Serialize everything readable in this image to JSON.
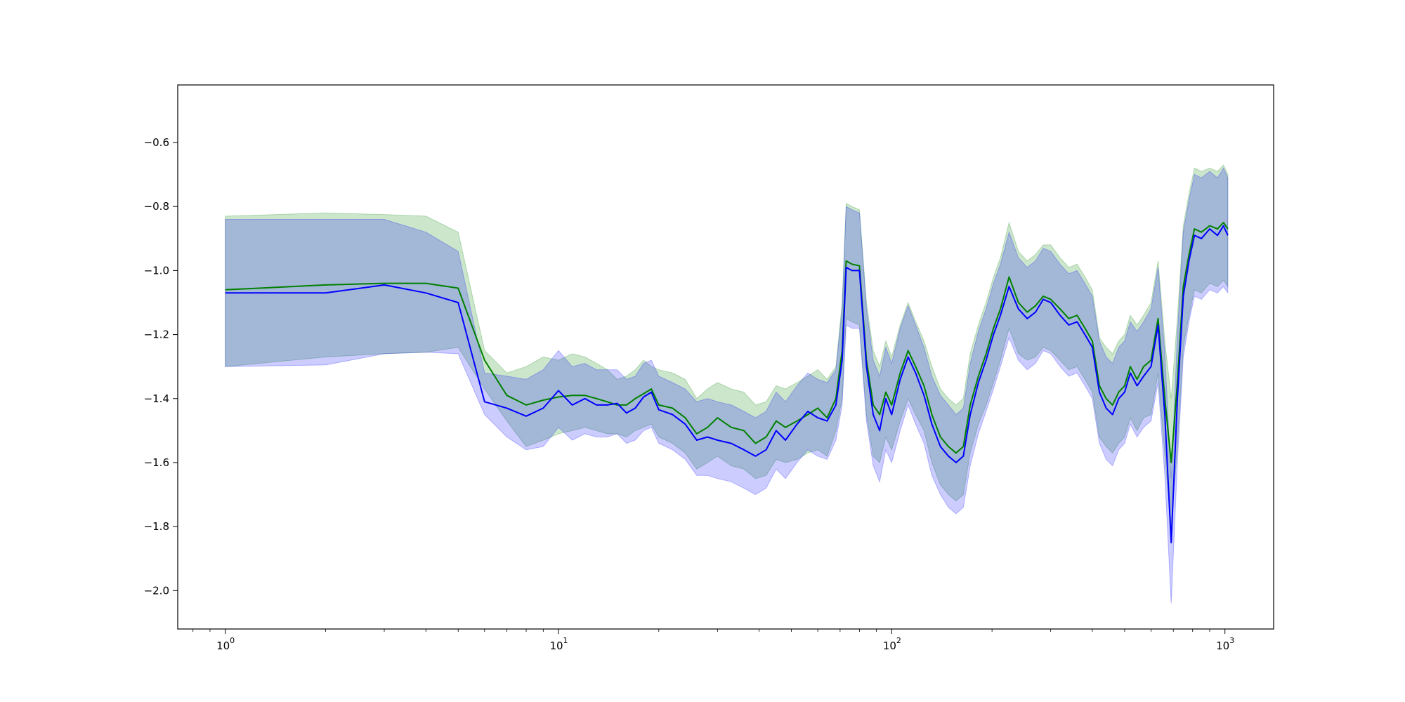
{
  "chart_data": {
    "type": "line",
    "title": "",
    "xlabel": "",
    "ylabel": "",
    "xscale": "log",
    "xlim": [
      0.72,
      1400
    ],
    "ylim": [
      -2.12,
      -0.42
    ],
    "grid": false,
    "legend": "none",
    "x_ticks": [
      1,
      10,
      100,
      1000
    ],
    "x_tick_labels": [
      "10",
      "10",
      "10",
      "10"
    ],
    "x_tick_exponents": [
      "0",
      "1",
      "2",
      "3"
    ],
    "y_ticks": [
      -0.6,
      -0.8,
      -1.0,
      -1.2,
      -1.4,
      -1.6,
      -1.8,
      -2.0
    ],
    "y_tick_labels": [
      "−0.6",
      "−0.8",
      "−1.0",
      "−1.2",
      "−1.4",
      "−1.6",
      "−1.8",
      "−2.0"
    ],
    "series": [
      {
        "color": "#008000",
        "band_color": "#008000",
        "points": [
          [
            1,
            -1.06,
            -0.83,
            -1.3
          ],
          [
            2,
            -1.045,
            -0.82,
            -1.27
          ],
          [
            3,
            -1.04,
            -0.825,
            -1.26
          ],
          [
            4,
            -1.04,
            -0.83,
            -1.255
          ],
          [
            5,
            -1.055,
            -0.88,
            -1.24
          ],
          [
            6,
            -1.28,
            -1.25,
            -1.37
          ],
          [
            7,
            -1.39,
            -1.32,
            -1.47
          ],
          [
            8,
            -1.42,
            -1.3,
            -1.55
          ],
          [
            9,
            -1.405,
            -1.27,
            -1.53
          ],
          [
            10,
            -1.395,
            -1.28,
            -1.51
          ],
          [
            11,
            -1.39,
            -1.26,
            -1.5
          ],
          [
            12,
            -1.39,
            -1.27,
            -1.49
          ],
          [
            13,
            -1.4,
            -1.29,
            -1.5
          ],
          [
            14,
            -1.41,
            -1.31,
            -1.51
          ],
          [
            15,
            -1.42,
            -1.34,
            -1.51
          ],
          [
            16,
            -1.42,
            -1.33,
            -1.52
          ],
          [
            17,
            -1.4,
            -1.31,
            -1.5
          ],
          [
            18,
            -1.385,
            -1.28,
            -1.49
          ],
          [
            19,
            -1.37,
            -1.3,
            -1.48
          ],
          [
            20,
            -1.42,
            -1.31,
            -1.52
          ],
          [
            22,
            -1.43,
            -1.32,
            -1.54
          ],
          [
            24,
            -1.46,
            -1.34,
            -1.57
          ],
          [
            26,
            -1.51,
            -1.4,
            -1.62
          ],
          [
            28,
            -1.49,
            -1.37,
            -1.6
          ],
          [
            30,
            -1.46,
            -1.35,
            -1.58
          ],
          [
            33,
            -1.49,
            -1.37,
            -1.61
          ],
          [
            36,
            -1.5,
            -1.38,
            -1.62
          ],
          [
            39,
            -1.54,
            -1.42,
            -1.65
          ],
          [
            42,
            -1.52,
            -1.41,
            -1.64
          ],
          [
            45,
            -1.47,
            -1.36,
            -1.59
          ],
          [
            48,
            -1.49,
            -1.37,
            -1.6
          ],
          [
            52,
            -1.47,
            -1.35,
            -1.59
          ],
          [
            56,
            -1.45,
            -1.33,
            -1.57
          ],
          [
            60,
            -1.43,
            -1.31,
            -1.56
          ],
          [
            64,
            -1.46,
            -1.34,
            -1.58
          ],
          [
            68,
            -1.4,
            -1.3,
            -1.5
          ],
          [
            71,
            -1.25,
            -1.1,
            -1.4
          ],
          [
            73,
            -0.97,
            -0.79,
            -1.15
          ],
          [
            76,
            -0.98,
            -0.8,
            -1.16
          ],
          [
            80,
            -0.985,
            -0.81,
            -1.17
          ],
          [
            84,
            -1.28,
            -1.1,
            -1.45
          ],
          [
            88,
            -1.42,
            -1.25,
            -1.58
          ],
          [
            92,
            -1.45,
            -1.3,
            -1.6
          ],
          [
            96,
            -1.38,
            -1.22,
            -1.52
          ],
          [
            100,
            -1.42,
            -1.27,
            -1.56
          ],
          [
            106,
            -1.32,
            -1.17,
            -1.47
          ],
          [
            112,
            -1.25,
            -1.1,
            -1.4
          ],
          [
            118,
            -1.3,
            -1.16,
            -1.45
          ],
          [
            125,
            -1.36,
            -1.22,
            -1.5
          ],
          [
            132,
            -1.45,
            -1.3,
            -1.6
          ],
          [
            140,
            -1.52,
            -1.37,
            -1.67
          ],
          [
            148,
            -1.55,
            -1.4,
            -1.7
          ],
          [
            156,
            -1.57,
            -1.42,
            -1.72
          ],
          [
            164,
            -1.55,
            -1.4,
            -1.7
          ],
          [
            172,
            -1.42,
            -1.26,
            -1.57
          ],
          [
            182,
            -1.33,
            -1.17,
            -1.48
          ],
          [
            192,
            -1.26,
            -1.1,
            -1.42
          ],
          [
            202,
            -1.18,
            -1.02,
            -1.35
          ],
          [
            212,
            -1.12,
            -0.96,
            -1.28
          ],
          [
            225,
            -1.02,
            -0.85,
            -1.18
          ],
          [
            240,
            -1.1,
            -0.94,
            -1.26
          ],
          [
            255,
            -1.13,
            -0.97,
            -1.28
          ],
          [
            270,
            -1.11,
            -0.95,
            -1.27
          ],
          [
            285,
            -1.08,
            -0.92,
            -1.24
          ],
          [
            300,
            -1.09,
            -0.92,
            -1.25
          ],
          [
            320,
            -1.12,
            -0.96,
            -1.28
          ],
          [
            340,
            -1.15,
            -0.99,
            -1.31
          ],
          [
            360,
            -1.14,
            -0.98,
            -1.3
          ],
          [
            380,
            -1.18,
            -1.02,
            -1.34
          ],
          [
            400,
            -1.22,
            -1.06,
            -1.38
          ],
          [
            420,
            -1.36,
            -1.21,
            -1.52
          ],
          [
            440,
            -1.4,
            -1.24,
            -1.55
          ],
          [
            460,
            -1.42,
            -1.26,
            -1.57
          ],
          [
            480,
            -1.38,
            -1.22,
            -1.54
          ],
          [
            500,
            -1.36,
            -1.2,
            -1.52
          ],
          [
            520,
            -1.3,
            -1.14,
            -1.46
          ],
          [
            545,
            -1.34,
            -1.17,
            -1.5
          ],
          [
            570,
            -1.3,
            -1.14,
            -1.46
          ],
          [
            600,
            -1.28,
            -1.1,
            -1.45
          ],
          [
            630,
            -1.15,
            -0.97,
            -1.32
          ],
          [
            660,
            -1.4,
            -1.22,
            -1.58
          ],
          [
            690,
            -1.6,
            -1.4,
            -1.8
          ],
          [
            720,
            -1.35,
            -1.15,
            -1.55
          ],
          [
            750,
            -1.05,
            -0.86,
            -1.24
          ],
          [
            780,
            -0.95,
            -0.76,
            -1.14
          ],
          [
            810,
            -0.87,
            -0.68,
            -1.06
          ],
          [
            850,
            -0.88,
            -0.69,
            -1.07
          ],
          [
            900,
            -0.86,
            -0.68,
            -1.04
          ],
          [
            950,
            -0.87,
            -0.69,
            -1.05
          ],
          [
            990,
            -0.85,
            -0.67,
            -1.03
          ],
          [
            1020,
            -0.87,
            -0.7,
            -1.05
          ]
        ]
      },
      {
        "color": "#0000ff",
        "band_color": "#0000ff",
        "points": [
          [
            1,
            -1.07,
            -0.84,
            -1.3
          ],
          [
            2,
            -1.07,
            -0.84,
            -1.295
          ],
          [
            3,
            -1.045,
            -0.84,
            -1.26
          ],
          [
            4,
            -1.07,
            -0.88,
            -1.255
          ],
          [
            5,
            -1.1,
            -0.94,
            -1.26
          ],
          [
            6,
            -1.41,
            -1.32,
            -1.45
          ],
          [
            7,
            -1.43,
            -1.33,
            -1.52
          ],
          [
            8,
            -1.455,
            -1.34,
            -1.56
          ],
          [
            9,
            -1.43,
            -1.31,
            -1.55
          ],
          [
            10,
            -1.375,
            -1.25,
            -1.49
          ],
          [
            11,
            -1.42,
            -1.3,
            -1.53
          ],
          [
            12,
            -1.4,
            -1.29,
            -1.51
          ],
          [
            13,
            -1.42,
            -1.31,
            -1.52
          ],
          [
            14,
            -1.42,
            -1.31,
            -1.52
          ],
          [
            15,
            -1.415,
            -1.31,
            -1.51
          ],
          [
            16,
            -1.445,
            -1.34,
            -1.54
          ],
          [
            17,
            -1.43,
            -1.33,
            -1.53
          ],
          [
            18,
            -1.395,
            -1.29,
            -1.5
          ],
          [
            19,
            -1.38,
            -1.28,
            -1.49
          ],
          [
            20,
            -1.435,
            -1.33,
            -1.54
          ],
          [
            22,
            -1.45,
            -1.35,
            -1.56
          ],
          [
            24,
            -1.48,
            -1.37,
            -1.59
          ],
          [
            26,
            -1.53,
            -1.41,
            -1.64
          ],
          [
            28,
            -1.52,
            -1.4,
            -1.64
          ],
          [
            30,
            -1.53,
            -1.41,
            -1.65
          ],
          [
            33,
            -1.54,
            -1.42,
            -1.66
          ],
          [
            36,
            -1.56,
            -1.44,
            -1.68
          ],
          [
            39,
            -1.58,
            -1.46,
            -1.7
          ],
          [
            42,
            -1.56,
            -1.44,
            -1.68
          ],
          [
            45,
            -1.5,
            -1.38,
            -1.62
          ],
          [
            48,
            -1.53,
            -1.41,
            -1.65
          ],
          [
            52,
            -1.48,
            -1.36,
            -1.6
          ],
          [
            56,
            -1.44,
            -1.32,
            -1.56
          ],
          [
            60,
            -1.46,
            -1.34,
            -1.58
          ],
          [
            64,
            -1.47,
            -1.35,
            -1.59
          ],
          [
            68,
            -1.42,
            -1.31,
            -1.53
          ],
          [
            71,
            -1.28,
            -1.12,
            -1.42
          ],
          [
            73,
            -0.99,
            -0.8,
            -1.17
          ],
          [
            76,
            -1.0,
            -0.81,
            -1.18
          ],
          [
            80,
            -1.0,
            -0.82,
            -1.18
          ],
          [
            84,
            -1.3,
            -1.12,
            -1.47
          ],
          [
            88,
            -1.45,
            -1.28,
            -1.61
          ],
          [
            92,
            -1.5,
            -1.33,
            -1.66
          ],
          [
            96,
            -1.4,
            -1.24,
            -1.56
          ],
          [
            100,
            -1.45,
            -1.29,
            -1.6
          ],
          [
            106,
            -1.34,
            -1.18,
            -1.5
          ],
          [
            112,
            -1.27,
            -1.11,
            -1.42
          ],
          [
            118,
            -1.32,
            -1.17,
            -1.48
          ],
          [
            125,
            -1.39,
            -1.24,
            -1.54
          ],
          [
            132,
            -1.48,
            -1.33,
            -1.64
          ],
          [
            140,
            -1.55,
            -1.39,
            -1.7
          ],
          [
            148,
            -1.58,
            -1.42,
            -1.74
          ],
          [
            156,
            -1.6,
            -1.45,
            -1.76
          ],
          [
            164,
            -1.58,
            -1.43,
            -1.74
          ],
          [
            172,
            -1.45,
            -1.29,
            -1.61
          ],
          [
            182,
            -1.35,
            -1.19,
            -1.51
          ],
          [
            192,
            -1.28,
            -1.12,
            -1.44
          ],
          [
            202,
            -1.2,
            -1.04,
            -1.37
          ],
          [
            212,
            -1.14,
            -0.98,
            -1.3
          ],
          [
            225,
            -1.05,
            -0.88,
            -1.21
          ],
          [
            240,
            -1.12,
            -0.96,
            -1.28
          ],
          [
            255,
            -1.15,
            -0.99,
            -1.31
          ],
          [
            270,
            -1.13,
            -0.97,
            -1.29
          ],
          [
            285,
            -1.09,
            -0.93,
            -1.25
          ],
          [
            300,
            -1.1,
            -0.94,
            -1.26
          ],
          [
            320,
            -1.14,
            -0.98,
            -1.3
          ],
          [
            340,
            -1.17,
            -1.01,
            -1.33
          ],
          [
            360,
            -1.16,
            -1.0,
            -1.32
          ],
          [
            380,
            -1.2,
            -1.04,
            -1.36
          ],
          [
            400,
            -1.24,
            -1.08,
            -1.4
          ],
          [
            420,
            -1.38,
            -1.22,
            -1.54
          ],
          [
            440,
            -1.43,
            -1.27,
            -1.59
          ],
          [
            460,
            -1.45,
            -1.29,
            -1.61
          ],
          [
            480,
            -1.4,
            -1.24,
            -1.56
          ],
          [
            500,
            -1.38,
            -1.22,
            -1.54
          ],
          [
            520,
            -1.32,
            -1.16,
            -1.48
          ],
          [
            545,
            -1.36,
            -1.19,
            -1.52
          ],
          [
            570,
            -1.33,
            -1.16,
            -1.49
          ],
          [
            600,
            -1.3,
            -1.12,
            -1.47
          ],
          [
            630,
            -1.17,
            -0.99,
            -1.35
          ],
          [
            660,
            -1.45,
            -1.26,
            -1.64
          ],
          [
            690,
            -1.85,
            -1.65,
            -2.04
          ],
          [
            720,
            -1.4,
            -1.2,
            -1.6
          ],
          [
            750,
            -1.08,
            -0.88,
            -1.27
          ],
          [
            780,
            -0.97,
            -0.78,
            -1.16
          ],
          [
            810,
            -0.89,
            -0.7,
            -1.08
          ],
          [
            850,
            -0.9,
            -0.71,
            -1.09
          ],
          [
            900,
            -0.87,
            -0.69,
            -1.06
          ],
          [
            950,
            -0.89,
            -0.71,
            -1.07
          ],
          [
            990,
            -0.86,
            -0.68,
            -1.05
          ],
          [
            1020,
            -0.89,
            -0.71,
            -1.07
          ]
        ]
      }
    ]
  }
}
